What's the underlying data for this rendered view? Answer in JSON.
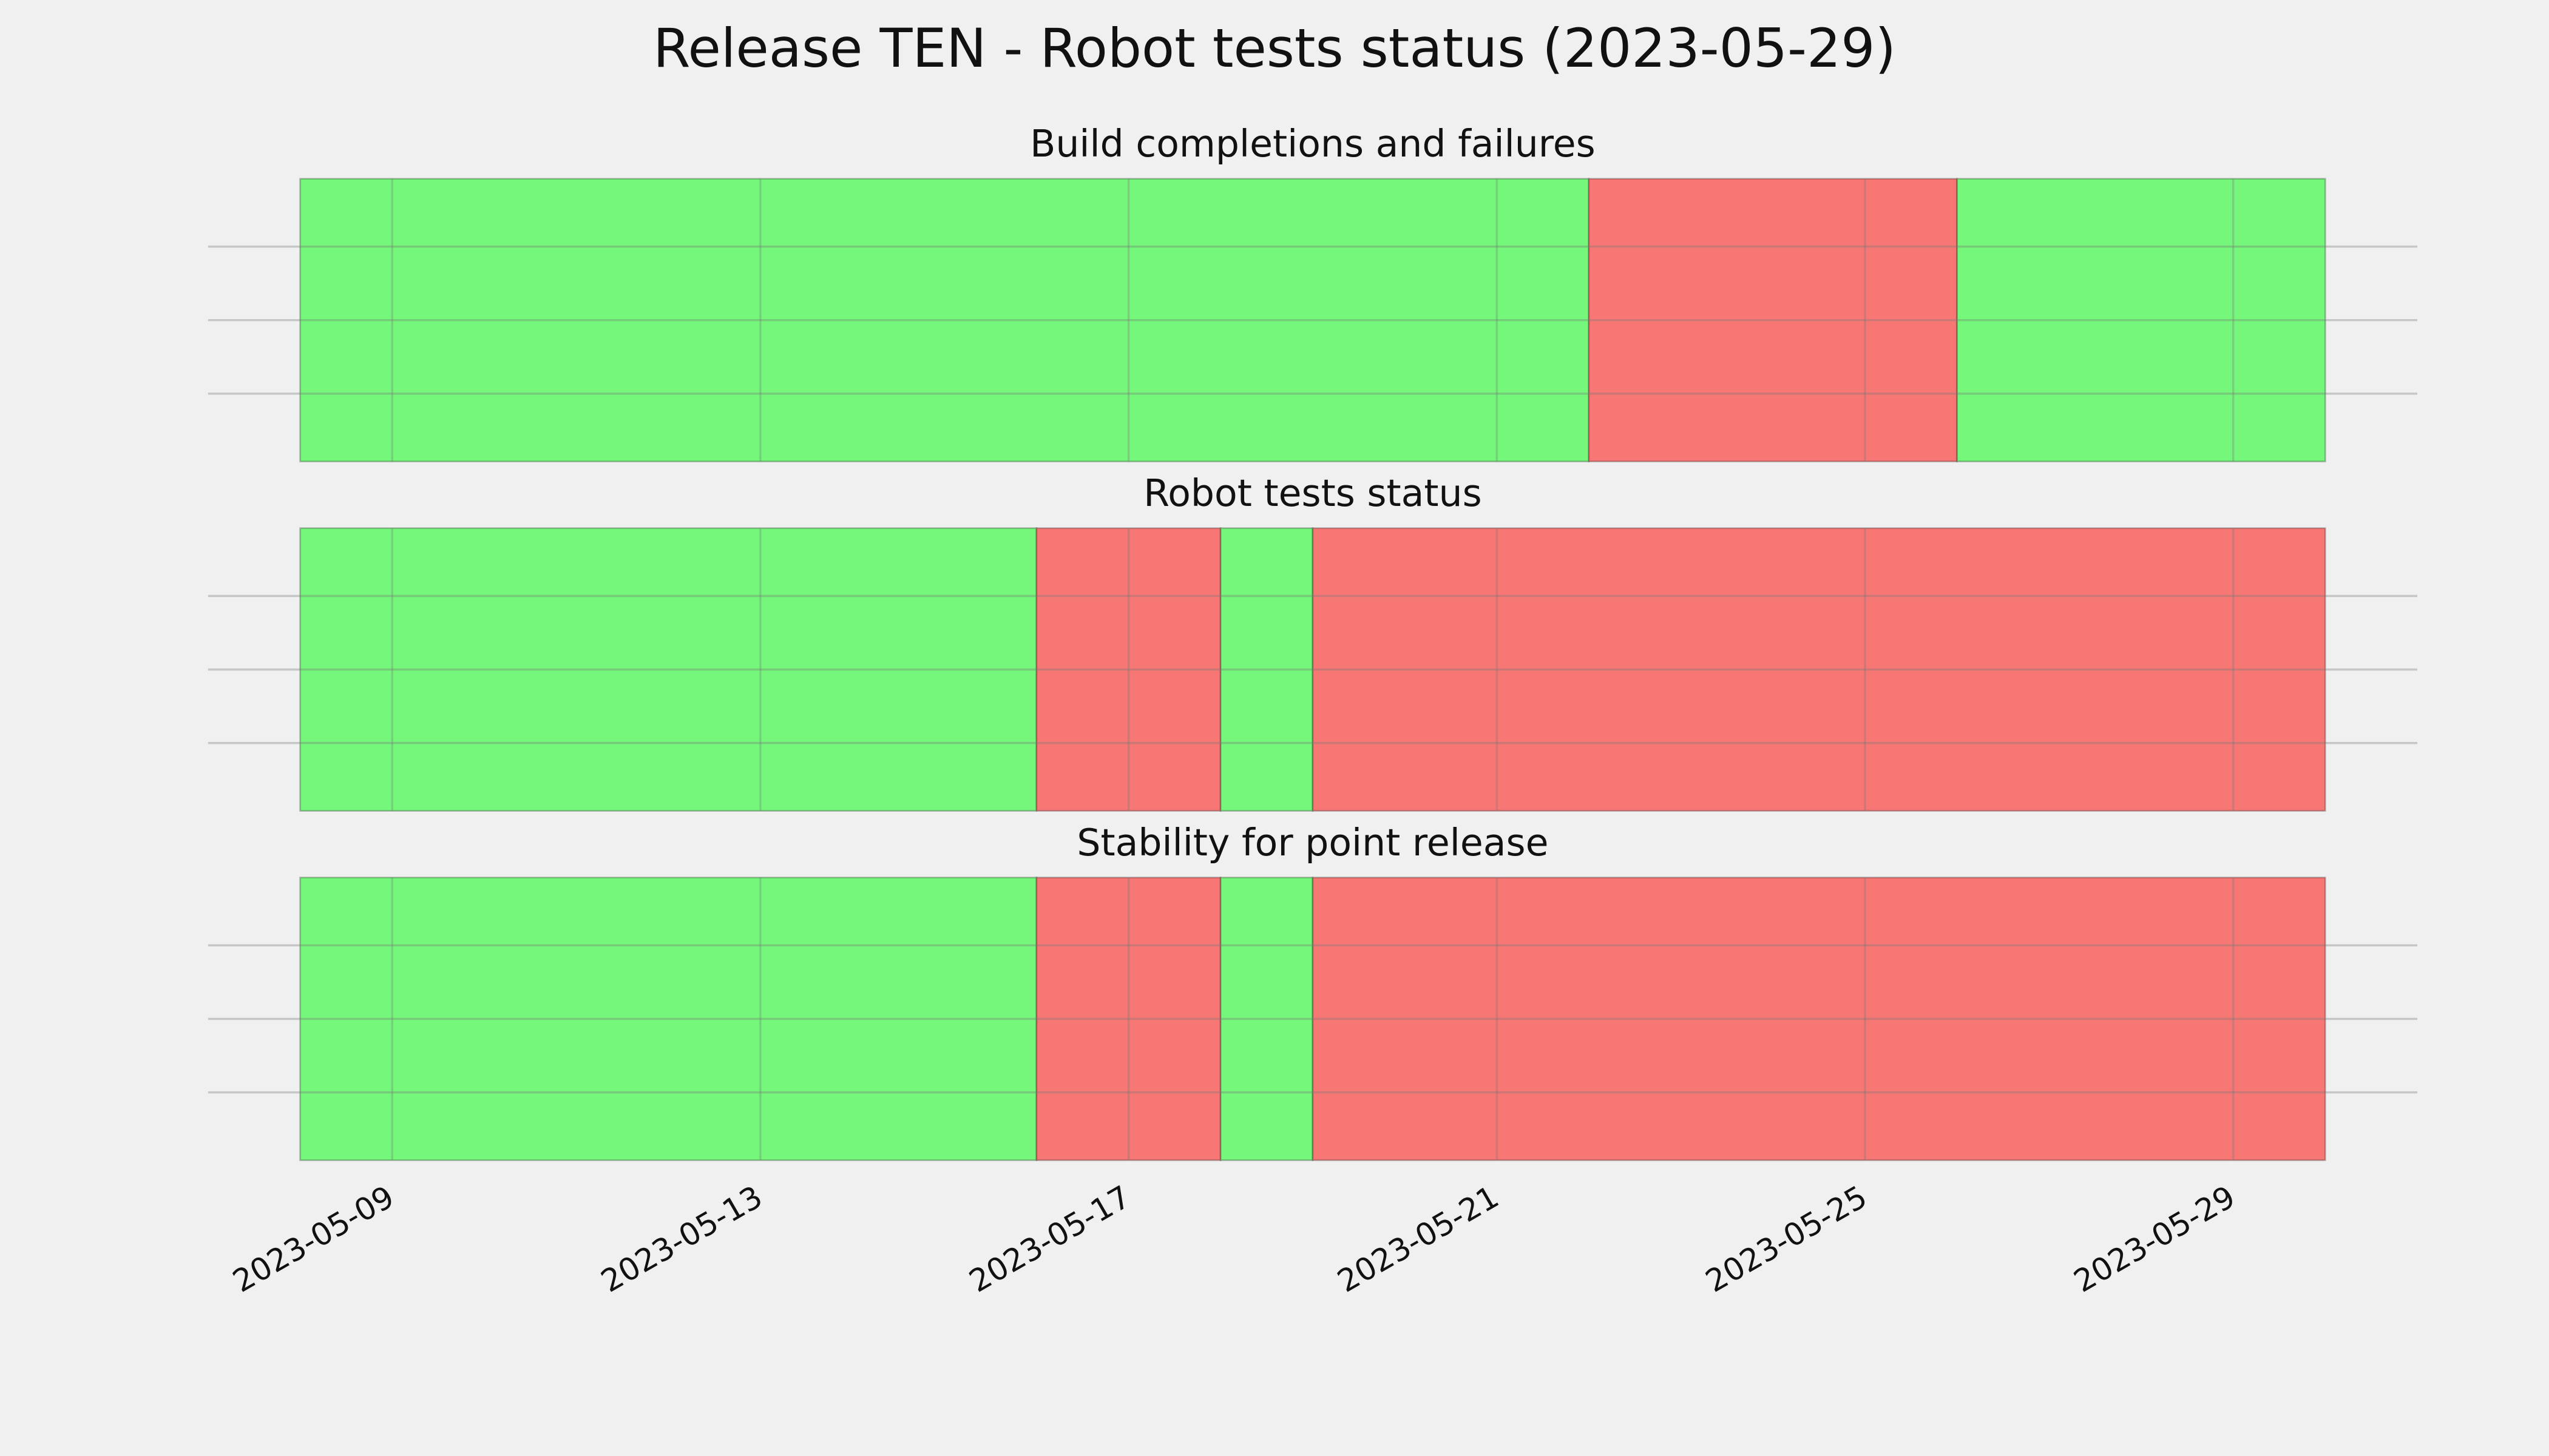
{
  "chart_data": {
    "type": "timeline",
    "title": "Release TEN - Robot tests status (2023-05-29)",
    "xlim": [
      "2023-05-07",
      "2023-05-31"
    ],
    "xticks": [
      "2023-05-09",
      "2023-05-13",
      "2023-05-17",
      "2023-05-21",
      "2023-05-25",
      "2023-05-29"
    ],
    "grid": true,
    "panels": [
      {
        "title": "Build completions and failures",
        "segments": [
          {
            "start": "2023-05-08",
            "end": "2023-05-22",
            "color": "#74f77a"
          },
          {
            "start": "2023-05-22",
            "end": "2023-05-26",
            "color": "#f77775"
          },
          {
            "start": "2023-05-26",
            "end": "2023-05-30",
            "color": "#74f77a"
          }
        ]
      },
      {
        "title": "Robot tests status",
        "segments": [
          {
            "start": "2023-05-08",
            "end": "2023-05-16",
            "color": "#74f77a"
          },
          {
            "start": "2023-05-16",
            "end": "2023-05-18",
            "color": "#f77775"
          },
          {
            "start": "2023-05-18",
            "end": "2023-05-19",
            "color": "#74f77a"
          },
          {
            "start": "2023-05-19",
            "end": "2023-05-30",
            "color": "#f77775"
          }
        ]
      },
      {
        "title": "Stability for point release",
        "segments": [
          {
            "start": "2023-05-08",
            "end": "2023-05-16",
            "color": "#74f77a"
          },
          {
            "start": "2023-05-16",
            "end": "2023-05-18",
            "color": "#f77775"
          },
          {
            "start": "2023-05-18",
            "end": "2023-05-19",
            "color": "#74f77a"
          },
          {
            "start": "2023-05-19",
            "end": "2023-05-30",
            "color": "#f77775"
          }
        ]
      }
    ]
  }
}
